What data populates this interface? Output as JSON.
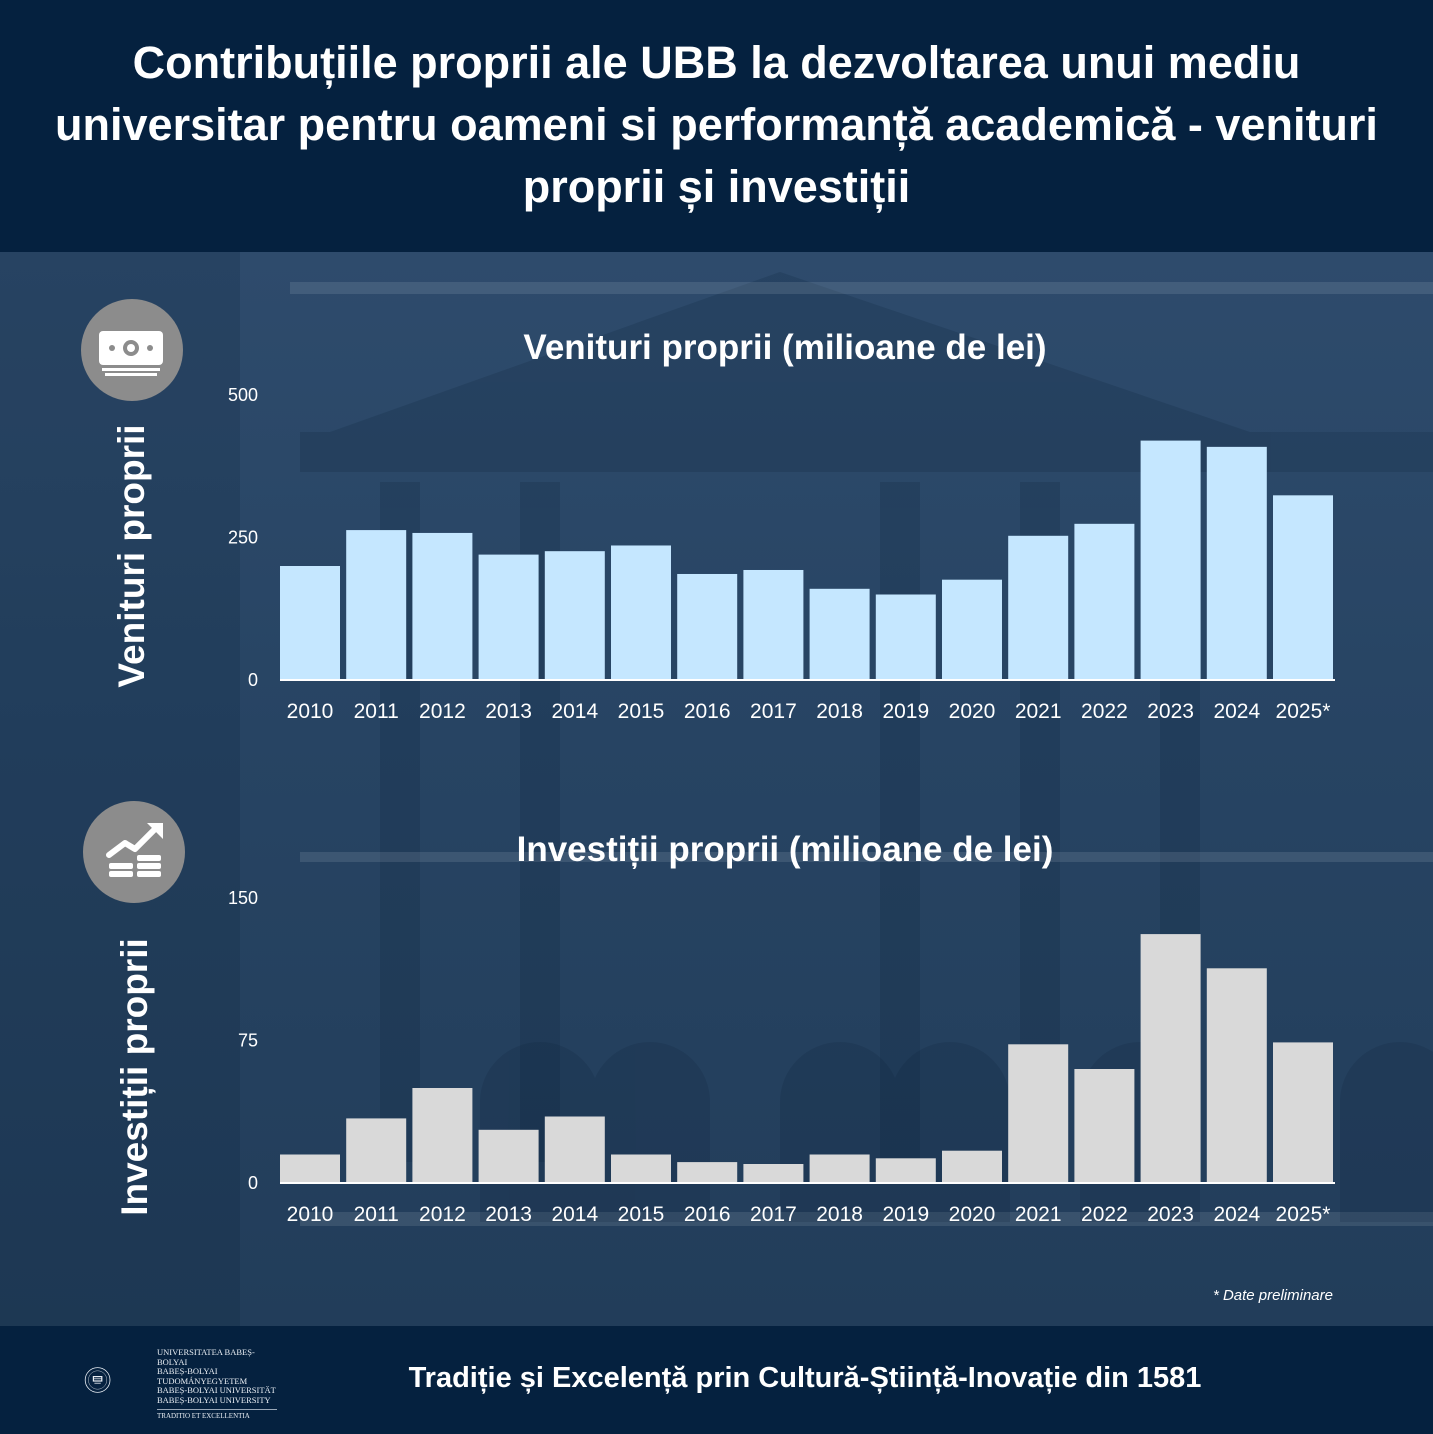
{
  "header": {
    "title": "Contribuțiile proprii ale UBB la dezvoltarea unui mediu universitar pentru oameni si performanță academică - venituri proprii și investiții"
  },
  "side_labels": {
    "revenue": "Venituri proprii",
    "investment": "Investiții proprii"
  },
  "icons": {
    "revenue": "banknote-icon",
    "investment": "growth-coins-icon"
  },
  "chart_data": [
    {
      "type": "bar",
      "title": "Venituri proprii (milioane de lei)",
      "categories": [
        "2010",
        "2011",
        "2012",
        "2013",
        "2014",
        "2015",
        "2016",
        "2017",
        "2018",
        "2019",
        "2020",
        "2021",
        "2022",
        "2023",
        "2024",
        "2025*"
      ],
      "values": [
        200,
        263,
        258,
        220,
        226,
        236,
        186,
        193,
        160,
        150,
        176,
        253,
        274,
        420,
        409,
        324
      ],
      "yticks": [
        0,
        250,
        500
      ],
      "ylim": [
        0,
        500
      ],
      "bar_color": "#c5e7ff"
    },
    {
      "type": "bar",
      "title": "Investiții proprii (milioane de lei)",
      "categories": [
        "2010",
        "2011",
        "2012",
        "2013",
        "2014",
        "2015",
        "2016",
        "2017",
        "2018",
        "2019",
        "2020",
        "2021",
        "2022",
        "2023",
        "2024",
        "2025*"
      ],
      "values": [
        15,
        34,
        50,
        28,
        35,
        15,
        11,
        10,
        15,
        13,
        17,
        73,
        60,
        131,
        113,
        74
      ],
      "yticks": [
        0,
        75,
        150
      ],
      "ylim": [
        0,
        150
      ],
      "bar_color": "#d9d9d9"
    }
  ],
  "note": "* Date preliminare",
  "footer": {
    "tagline": "Tradiție și Excelență prin Cultură-Știință-Inovație din 1581"
  },
  "logo": {
    "lines": [
      "UNIVERSITATEA BABEȘ-BOLYAI",
      "BABEȘ-BOLYAI TUDOMÁNYEGYETEM",
      "BABEȘ-BOLYAI UNIVERSITÄT",
      "BABEȘ-BOLYAI UNIVERSITY"
    ],
    "motto": "TRADITIO ET EXCELLENTIA"
  }
}
